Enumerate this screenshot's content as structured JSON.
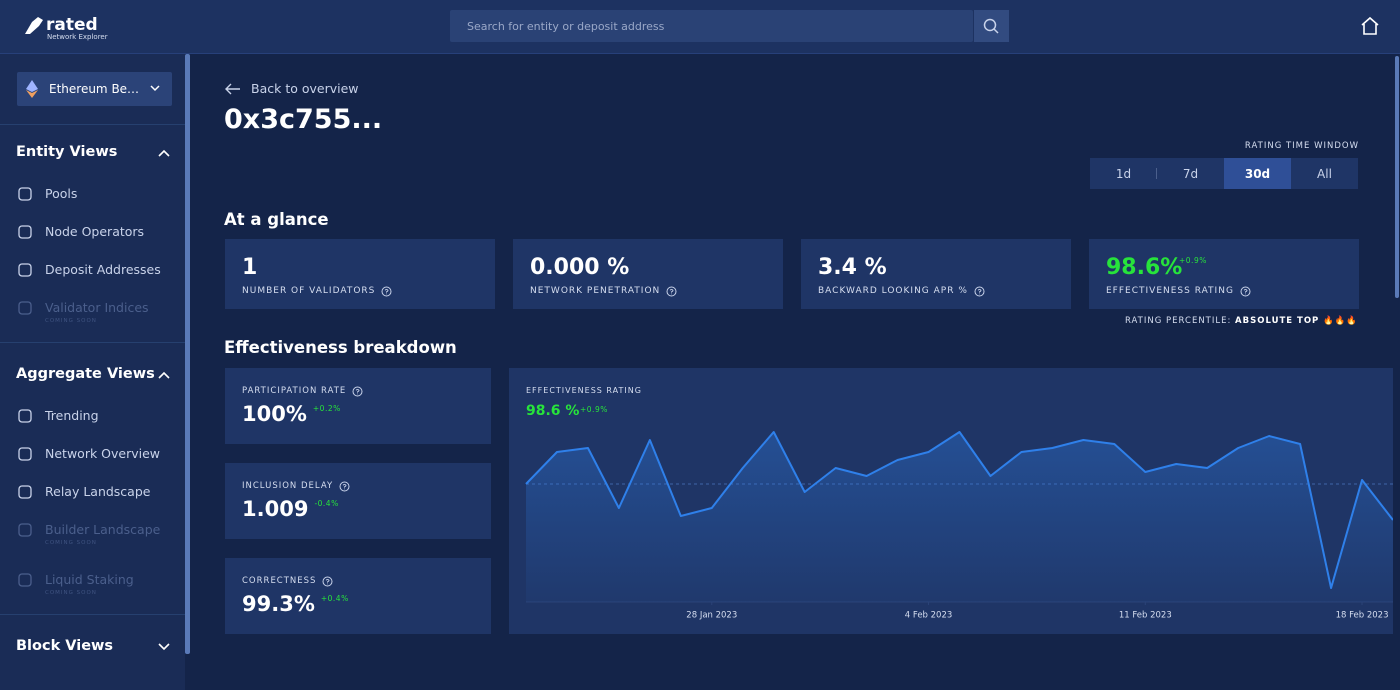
{
  "header": {
    "logo": "rated",
    "logo_subtitle": "Network Explorer",
    "search_placeholder": "Search for entity or deposit address"
  },
  "sidebar": {
    "network": "Ethereum Be…",
    "sections": [
      {
        "title": "Entity Views",
        "items": [
          {
            "label": "Pools"
          },
          {
            "label": "Node Operators"
          },
          {
            "label": "Deposit Addresses"
          },
          {
            "label": "Validator Indices",
            "note": "COMING SOON"
          }
        ]
      },
      {
        "title": "Aggregate Views",
        "items": [
          {
            "label": "Trending"
          },
          {
            "label": "Network Overview"
          },
          {
            "label": "Relay Landscape"
          },
          {
            "label": "Builder Landscape",
            "note": "COMING SOON"
          },
          {
            "label": "Liquid Staking",
            "note": "COMING SOON"
          }
        ]
      },
      {
        "title": "Block Views",
        "items": []
      }
    ]
  },
  "page": {
    "back": "Back to overview",
    "title": "0x3c755...",
    "time_window_label": "RATING TIME WINDOW",
    "time_windows": [
      "1d",
      "7d",
      "30d",
      "All"
    ],
    "active_window": 2,
    "glance_title": "At a glance",
    "glance": [
      {
        "value": "1",
        "label": "NUMBER OF VALIDATORS"
      },
      {
        "value": "0.000 %",
        "label": "NETWORK PENETRATION"
      },
      {
        "value": "3.4 %",
        "label": "BACKWARD LOOKING APR %"
      },
      {
        "value": "98.6%",
        "change": "+0.9%",
        "label": "EFFECTIVENESS RATING"
      }
    ],
    "percentile_label": "RATING PERCENTILE:",
    "percentile_value": "ABSOLUTE TOP 🔥🔥🔥",
    "breakdown_title": "Effectiveness breakdown",
    "breakdown": [
      {
        "label": "PARTICIPATION RATE",
        "value": "100%",
        "change": "+0.2%"
      },
      {
        "label": "INCLUSION DELAY",
        "value": "1.009",
        "change": "-0.4%"
      },
      {
        "label": "CORRECTNESS",
        "value": "99.3%",
        "change": "+0.4%"
      }
    ]
  },
  "chart_data": {
    "type": "line",
    "title": "EFFECTIVENESS RATING",
    "headline": "98.6 %",
    "headline_change": "+0.9%",
    "x": [
      "2023-01-22",
      "2023-01-23",
      "2023-01-24",
      "2023-01-25",
      "2023-01-26",
      "2023-01-27",
      "2023-01-28",
      "2023-01-29",
      "2023-01-30",
      "2023-01-31",
      "2023-02-01",
      "2023-02-02",
      "2023-02-03",
      "2023-02-04",
      "2023-02-05",
      "2023-02-06",
      "2023-02-07",
      "2023-02-08",
      "2023-02-09",
      "2023-02-10",
      "2023-02-11",
      "2023-02-12",
      "2023-02-13",
      "2023-02-14",
      "2023-02-15",
      "2023-02-16",
      "2023-02-17",
      "2023-02-18",
      "2023-02-19"
    ],
    "series": [
      {
        "color": "#2f80ea",
        "values": [
          98.6,
          99.4,
          99.5,
          98.0,
          99.7,
          97.8,
          98.0,
          99.0,
          99.9,
          98.4,
          99.0,
          98.8,
          99.2,
          99.4,
          99.9,
          98.8,
          99.4,
          99.5,
          99.7,
          99.6,
          98.9,
          99.1,
          99.0,
          99.5,
          99.8,
          99.6,
          96.0,
          98.7,
          97.7
        ]
      }
    ],
    "xlim": [
      "2023-01-22",
      "2023-02-19"
    ],
    "xticks": [
      {
        "value": "2023-01-28",
        "label": "28 Jan 2023"
      },
      {
        "value": "2023-02-04",
        "label": "4 Feb 2023"
      },
      {
        "value": "2023-02-11",
        "label": "11 Feb 2023"
      },
      {
        "value": "2023-02-18",
        "label": "18 Feb 2023"
      }
    ],
    "ylim": [
      95.65,
      100.65
    ],
    "reference_line": 98.6
  }
}
